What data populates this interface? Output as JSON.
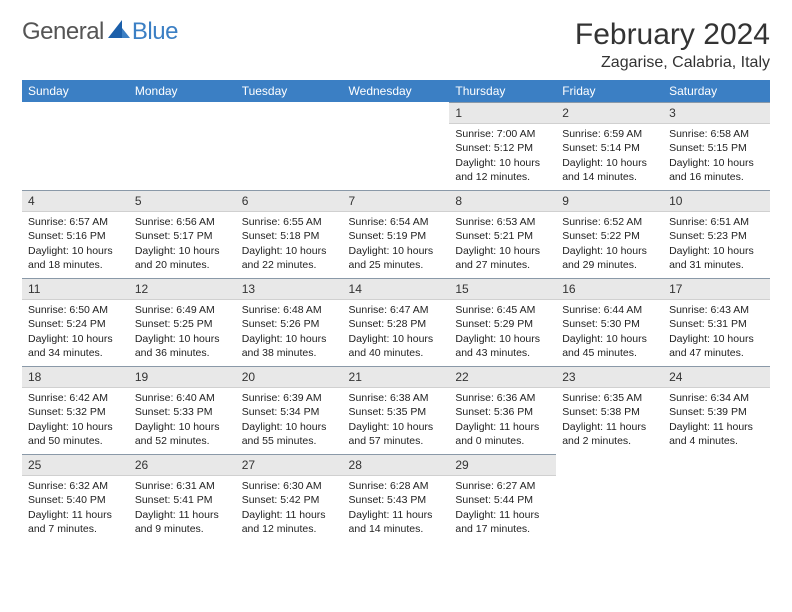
{
  "brand": {
    "part1": "General",
    "part2": "Blue"
  },
  "title": "February 2024",
  "location": "Zagarise, Calabria, Italy",
  "colors": {
    "header_bg": "#3b7fc4",
    "header_text": "#ffffff",
    "daynum_bg": "#e8e8e8",
    "daynum_border_top": "#8a99a8",
    "text": "#333333",
    "brand_blue": "#3b7fc4",
    "brand_gray": "#555555"
  },
  "weekdays": [
    "Sunday",
    "Monday",
    "Tuesday",
    "Wednesday",
    "Thursday",
    "Friday",
    "Saturday"
  ],
  "weeks": [
    [
      null,
      null,
      null,
      null,
      {
        "n": "1",
        "sunrise": "Sunrise: 7:00 AM",
        "sunset": "Sunset: 5:12 PM",
        "daylight": "Daylight: 10 hours and 12 minutes."
      },
      {
        "n": "2",
        "sunrise": "Sunrise: 6:59 AM",
        "sunset": "Sunset: 5:14 PM",
        "daylight": "Daylight: 10 hours and 14 minutes."
      },
      {
        "n": "3",
        "sunrise": "Sunrise: 6:58 AM",
        "sunset": "Sunset: 5:15 PM",
        "daylight": "Daylight: 10 hours and 16 minutes."
      }
    ],
    [
      {
        "n": "4",
        "sunrise": "Sunrise: 6:57 AM",
        "sunset": "Sunset: 5:16 PM",
        "daylight": "Daylight: 10 hours and 18 minutes."
      },
      {
        "n": "5",
        "sunrise": "Sunrise: 6:56 AM",
        "sunset": "Sunset: 5:17 PM",
        "daylight": "Daylight: 10 hours and 20 minutes."
      },
      {
        "n": "6",
        "sunrise": "Sunrise: 6:55 AM",
        "sunset": "Sunset: 5:18 PM",
        "daylight": "Daylight: 10 hours and 22 minutes."
      },
      {
        "n": "7",
        "sunrise": "Sunrise: 6:54 AM",
        "sunset": "Sunset: 5:19 PM",
        "daylight": "Daylight: 10 hours and 25 minutes."
      },
      {
        "n": "8",
        "sunrise": "Sunrise: 6:53 AM",
        "sunset": "Sunset: 5:21 PM",
        "daylight": "Daylight: 10 hours and 27 minutes."
      },
      {
        "n": "9",
        "sunrise": "Sunrise: 6:52 AM",
        "sunset": "Sunset: 5:22 PM",
        "daylight": "Daylight: 10 hours and 29 minutes."
      },
      {
        "n": "10",
        "sunrise": "Sunrise: 6:51 AM",
        "sunset": "Sunset: 5:23 PM",
        "daylight": "Daylight: 10 hours and 31 minutes."
      }
    ],
    [
      {
        "n": "11",
        "sunrise": "Sunrise: 6:50 AM",
        "sunset": "Sunset: 5:24 PM",
        "daylight": "Daylight: 10 hours and 34 minutes."
      },
      {
        "n": "12",
        "sunrise": "Sunrise: 6:49 AM",
        "sunset": "Sunset: 5:25 PM",
        "daylight": "Daylight: 10 hours and 36 minutes."
      },
      {
        "n": "13",
        "sunrise": "Sunrise: 6:48 AM",
        "sunset": "Sunset: 5:26 PM",
        "daylight": "Daylight: 10 hours and 38 minutes."
      },
      {
        "n": "14",
        "sunrise": "Sunrise: 6:47 AM",
        "sunset": "Sunset: 5:28 PM",
        "daylight": "Daylight: 10 hours and 40 minutes."
      },
      {
        "n": "15",
        "sunrise": "Sunrise: 6:45 AM",
        "sunset": "Sunset: 5:29 PM",
        "daylight": "Daylight: 10 hours and 43 minutes."
      },
      {
        "n": "16",
        "sunrise": "Sunrise: 6:44 AM",
        "sunset": "Sunset: 5:30 PM",
        "daylight": "Daylight: 10 hours and 45 minutes."
      },
      {
        "n": "17",
        "sunrise": "Sunrise: 6:43 AM",
        "sunset": "Sunset: 5:31 PM",
        "daylight": "Daylight: 10 hours and 47 minutes."
      }
    ],
    [
      {
        "n": "18",
        "sunrise": "Sunrise: 6:42 AM",
        "sunset": "Sunset: 5:32 PM",
        "daylight": "Daylight: 10 hours and 50 minutes."
      },
      {
        "n": "19",
        "sunrise": "Sunrise: 6:40 AM",
        "sunset": "Sunset: 5:33 PM",
        "daylight": "Daylight: 10 hours and 52 minutes."
      },
      {
        "n": "20",
        "sunrise": "Sunrise: 6:39 AM",
        "sunset": "Sunset: 5:34 PM",
        "daylight": "Daylight: 10 hours and 55 minutes."
      },
      {
        "n": "21",
        "sunrise": "Sunrise: 6:38 AM",
        "sunset": "Sunset: 5:35 PM",
        "daylight": "Daylight: 10 hours and 57 minutes."
      },
      {
        "n": "22",
        "sunrise": "Sunrise: 6:36 AM",
        "sunset": "Sunset: 5:36 PM",
        "daylight": "Daylight: 11 hours and 0 minutes."
      },
      {
        "n": "23",
        "sunrise": "Sunrise: 6:35 AM",
        "sunset": "Sunset: 5:38 PM",
        "daylight": "Daylight: 11 hours and 2 minutes."
      },
      {
        "n": "24",
        "sunrise": "Sunrise: 6:34 AM",
        "sunset": "Sunset: 5:39 PM",
        "daylight": "Daylight: 11 hours and 4 minutes."
      }
    ],
    [
      {
        "n": "25",
        "sunrise": "Sunrise: 6:32 AM",
        "sunset": "Sunset: 5:40 PM",
        "daylight": "Daylight: 11 hours and 7 minutes."
      },
      {
        "n": "26",
        "sunrise": "Sunrise: 6:31 AM",
        "sunset": "Sunset: 5:41 PM",
        "daylight": "Daylight: 11 hours and 9 minutes."
      },
      {
        "n": "27",
        "sunrise": "Sunrise: 6:30 AM",
        "sunset": "Sunset: 5:42 PM",
        "daylight": "Daylight: 11 hours and 12 minutes."
      },
      {
        "n": "28",
        "sunrise": "Sunrise: 6:28 AM",
        "sunset": "Sunset: 5:43 PM",
        "daylight": "Daylight: 11 hours and 14 minutes."
      },
      {
        "n": "29",
        "sunrise": "Sunrise: 6:27 AM",
        "sunset": "Sunset: 5:44 PM",
        "daylight": "Daylight: 11 hours and 17 minutes."
      },
      null,
      null
    ]
  ]
}
